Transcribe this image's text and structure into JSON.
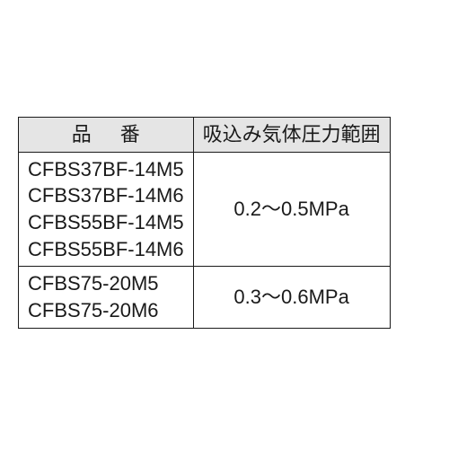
{
  "table": {
    "headers": {
      "part_number": "品番",
      "pressure_range": "吸込み気体圧力範囲"
    },
    "header_bg": "#e5e5e5",
    "border_color": "#1a1a1a",
    "text_color": "#1a1a1a",
    "font_size_pt": 16,
    "groups": [
      {
        "models_text": "CFBS37BF-14M5\nCFBS37BF-14M6\nCFBS55BF-14M5\nCFBS55BF-14M6",
        "pressure": "0.2～0.5MPa"
      },
      {
        "models_text": "CFBS75-20M5\nCFBS75-20M6",
        "pressure": "0.3～0.6MPa"
      }
    ]
  }
}
